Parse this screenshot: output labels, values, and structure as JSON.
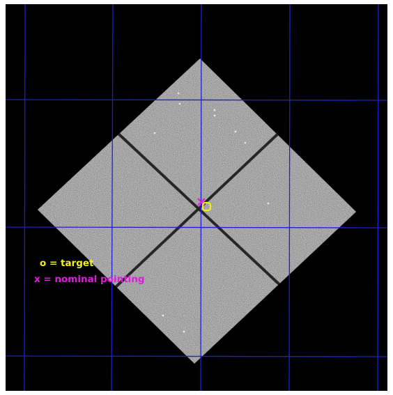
{
  "colors": {
    "background": "#000000",
    "frame_border": "#ffffff",
    "grid": "#1f1fd6",
    "detector": "#8a8a8a",
    "chip_gap": "#262626",
    "target": "#f2f21a",
    "nominal_pointing": "#e01ae0"
  },
  "legend": {
    "target_label": "o = target",
    "pointing_label": "x = nominal pointing"
  },
  "markers": {
    "target_icon": "circle-marker",
    "pointing_icon": "x-marker"
  }
}
